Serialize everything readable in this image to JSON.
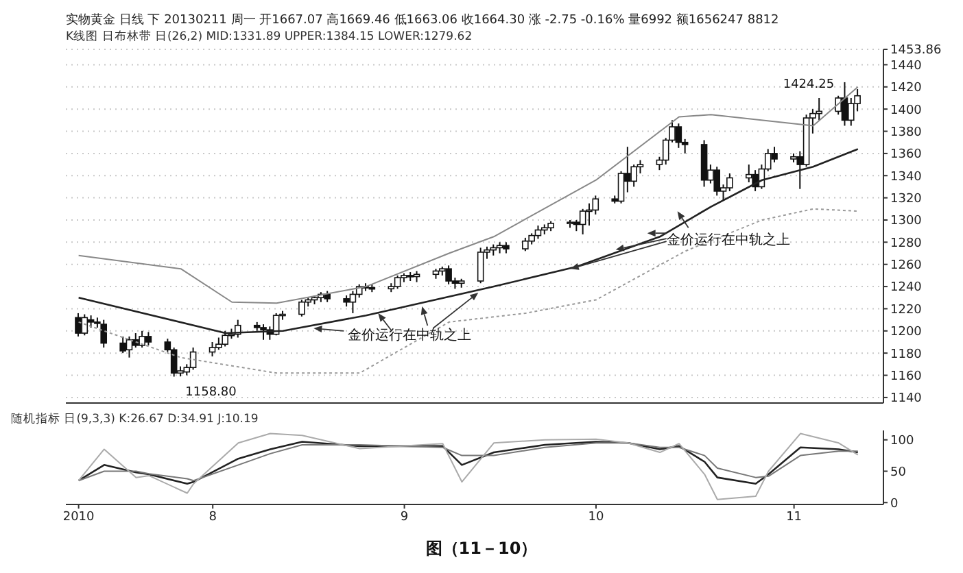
{
  "chart_data": [
    {
      "type": "candlestick",
      "title": "实物黄金 日线 下 20130211 周一 开1667.07 高1669.46 低1663.06 收1664.30 涨 -2.75 -0.16% 量6992 额1656247 8812",
      "subtitle": "K线图 日布林带 日(26,2) MID:1331.89 UPPER:1384.15 LOWER:1279.62",
      "x": [
        "2010-07-12",
        "2010-07-13",
        "2010-07-14",
        "2010-07-15",
        "2010-07-16",
        "2010-07-19",
        "2010-07-20",
        "2010-07-21",
        "2010-07-22",
        "2010-07-23",
        "2010-07-26",
        "2010-07-27",
        "2010-07-28",
        "2010-07-29",
        "2010-07-30",
        "2010-08-02",
        "2010-08-03",
        "2010-08-04",
        "2010-08-05",
        "2010-08-06",
        "2010-08-09",
        "2010-08-10",
        "2010-08-11",
        "2010-08-12",
        "2010-08-13",
        "2010-08-16",
        "2010-08-17",
        "2010-08-18",
        "2010-08-19",
        "2010-08-20",
        "2010-08-23",
        "2010-08-24",
        "2010-08-25",
        "2010-08-26",
        "2010-08-27",
        "2010-08-30",
        "2010-08-31",
        "2010-09-01",
        "2010-09-02",
        "2010-09-03",
        "2010-09-06",
        "2010-09-07",
        "2010-09-08",
        "2010-09-09",
        "2010-09-10",
        "2010-09-13",
        "2010-09-14",
        "2010-09-15",
        "2010-09-16",
        "2010-09-17",
        "2010-09-20",
        "2010-09-21",
        "2010-09-22",
        "2010-09-23",
        "2010-09-24",
        "2010-09-27",
        "2010-09-28",
        "2010-09-29",
        "2010-09-30",
        "2010-10-01",
        "2010-10-04",
        "2010-10-05",
        "2010-10-06",
        "2010-10-07",
        "2010-10-08",
        "2010-10-11",
        "2010-10-12",
        "2010-10-13",
        "2010-10-14",
        "2010-10-15",
        "2010-10-18",
        "2010-10-19",
        "2010-10-20",
        "2010-10-21",
        "2010-10-22",
        "2010-10-25",
        "2010-10-26",
        "2010-10-27",
        "2010-10-28",
        "2010-10-29",
        "2010-11-01",
        "2010-11-02",
        "2010-11-03",
        "2010-11-04",
        "2010-11-05",
        "2010-11-08",
        "2010-11-09",
        "2010-11-10",
        "2010-11-11"
      ],
      "ohlc": [
        [
          1212,
          1216,
          1195,
          1198
        ],
        [
          1198,
          1215,
          1196,
          1212
        ],
        [
          1210,
          1214,
          1203,
          1208
        ],
        [
          1208,
          1212,
          1203,
          1207
        ],
        [
          1206,
          1210,
          1185,
          1189
        ],
        [
          1189,
          1195,
          1180,
          1182
        ],
        [
          1183,
          1195,
          1176,
          1192
        ],
        [
          1192,
          1198,
          1185,
          1187
        ],
        [
          1187,
          1200,
          1185,
          1195
        ],
        [
          1195,
          1199,
          1187,
          1190
        ],
        [
          1190,
          1193,
          1181,
          1183
        ],
        [
          1183,
          1185,
          1158.8,
          1162
        ],
        [
          1162,
          1168,
          1159,
          1164
        ],
        [
          1163,
          1170,
          1160,
          1167
        ],
        [
          1167,
          1185,
          1165,
          1181
        ],
        [
          1181,
          1190,
          1177,
          1185
        ],
        [
          1185,
          1194,
          1183,
          1188
        ],
        [
          1188,
          1200,
          1186,
          1196
        ],
        [
          1196,
          1202,
          1193,
          1197
        ],
        [
          1197,
          1210,
          1194,
          1205
        ],
        [
          1205,
          1208,
          1200,
          1203
        ],
        [
          1203,
          1206,
          1192,
          1201
        ],
        [
          1201,
          1204,
          1192,
          1197
        ],
        [
          1197,
          1216,
          1196,
          1214
        ],
        [
          1214,
          1218,
          1210,
          1215
        ],
        [
          1215,
          1228,
          1213,
          1226
        ],
        [
          1226,
          1230,
          1222,
          1228
        ],
        [
          1228,
          1232,
          1224,
          1230
        ],
        [
          1230,
          1235,
          1226,
          1233
        ],
        [
          1233,
          1236,
          1226,
          1229
        ],
        [
          1229,
          1232,
          1222,
          1226
        ],
        [
          1226,
          1236,
          1216,
          1233
        ],
        [
          1233,
          1242,
          1230,
          1240
        ],
        [
          1240,
          1243,
          1236,
          1239
        ],
        [
          1239,
          1242,
          1235,
          1238
        ],
        [
          1238,
          1243,
          1235,
          1240
        ],
        [
          1240,
          1250,
          1238,
          1248
        ],
        [
          1248,
          1252,
          1244,
          1250
        ],
        [
          1250,
          1253,
          1245,
          1249
        ],
        [
          1249,
          1254,
          1244,
          1251
        ],
        [
          1251,
          1256,
          1247,
          1254
        ],
        [
          1254,
          1258,
          1250,
          1256
        ],
        [
          1256,
          1259,
          1242,
          1245
        ],
        [
          1245,
          1248,
          1238,
          1243
        ],
        [
          1243,
          1247,
          1239,
          1245
        ],
        [
          1245,
          1275,
          1243,
          1271
        ],
        [
          1271,
          1276,
          1265,
          1273
        ],
        [
          1273,
          1278,
          1268,
          1275
        ],
        [
          1275,
          1280,
          1270,
          1277
        ],
        [
          1277,
          1280,
          1270,
          1274
        ],
        [
          1274,
          1284,
          1272,
          1281
        ],
        [
          1281,
          1288,
          1278,
          1286
        ],
        [
          1286,
          1295,
          1283,
          1291
        ],
        [
          1291,
          1296,
          1287,
          1293
        ],
        [
          1293,
          1299,
          1290,
          1297
        ],
        [
          1297,
          1300,
          1293,
          1298
        ],
        [
          1298,
          1300,
          1290,
          1296
        ],
        [
          1296,
          1310,
          1287,
          1308
        ],
        [
          1308,
          1315,
          1295,
          1309
        ],
        [
          1309,
          1322,
          1305,
          1319
        ],
        [
          1319,
          1322,
          1315,
          1317
        ],
        [
          1317,
          1344,
          1315,
          1342
        ],
        [
          1342,
          1366,
          1325,
          1335
        ],
        [
          1335,
          1350,
          1330,
          1348
        ],
        [
          1348,
          1354,
          1342,
          1350
        ],
        [
          1350,
          1357,
          1345,
          1354
        ],
        [
          1354,
          1374,
          1350,
          1372
        ],
        [
          1372,
          1390,
          1370,
          1384
        ],
        [
          1384,
          1387,
          1365,
          1370
        ],
        [
          1370,
          1373,
          1360,
          1368
        ],
        [
          1368,
          1372,
          1330,
          1336
        ],
        [
          1336,
          1350,
          1333,
          1345
        ],
        [
          1345,
          1348,
          1322,
          1326
        ],
        [
          1326,
          1332,
          1318,
          1329
        ],
        [
          1329,
          1342,
          1326,
          1338
        ],
        [
          1338,
          1350,
          1334,
          1341
        ],
        [
          1341,
          1345,
          1326,
          1330
        ],
        [
          1330,
          1350,
          1328,
          1346
        ],
        [
          1346,
          1364,
          1344,
          1360
        ],
        [
          1360,
          1366,
          1352,
          1355
        ],
        [
          1355,
          1360,
          1352,
          1357
        ],
        [
          1357,
          1362,
          1328,
          1350
        ],
        [
          1350,
          1395,
          1348,
          1392
        ],
        [
          1392,
          1400,
          1378,
          1396
        ],
        [
          1396,
          1410,
          1390,
          1398
        ],
        [
          1398,
          1412,
          1395,
          1410
        ],
        [
          1410,
          1424.25,
          1385,
          1390
        ],
        [
          1390,
          1410,
          1385,
          1405
        ],
        [
          1405,
          1418,
          1398,
          1412
        ]
      ],
      "series": [
        {
          "type": "line",
          "color": "#222222",
          "line_style": "solid",
          "x": [
            "2010-07-12",
            "2010-08-04",
            "2010-08-13",
            "2010-08-26",
            "2010-09-15",
            "2010-09-28",
            "2010-10-11",
            "2010-10-19",
            "2010-10-27",
            "2010-11-04",
            "2010-11-11"
          ],
          "values": [
            1230,
            1198,
            1200,
            1214,
            1240,
            1258,
            1285,
            1312,
            1336,
            1348,
            1364
          ]
        },
        {
          "type": "line",
          "color": "#888888",
          "line_style": "solid",
          "x": [
            "2010-07-12",
            "2010-07-28",
            "2010-08-05",
            "2010-08-12",
            "2010-08-26",
            "2010-09-08",
            "2010-09-15",
            "2010-10-01",
            "2010-10-14",
            "2010-10-19",
            "2010-11-04",
            "2010-11-11"
          ],
          "values": [
            1268,
            1256,
            1226,
            1225,
            1240,
            1270,
            1285,
            1336,
            1393,
            1395,
            1385,
            1420
          ]
        },
        {
          "type": "line",
          "color": "#999999",
          "line_style": "dotted",
          "x": [
            "2010-07-12",
            "2010-07-28",
            "2010-08-12",
            "2010-08-25",
            "2010-09-08",
            "2010-09-20",
            "2010-10-01",
            "2010-10-15",
            "2010-10-27",
            "2010-11-04",
            "2010-11-11"
          ],
          "values": [
            1208,
            1176,
            1162,
            1162,
            1208,
            1216,
            1228,
            1272,
            1300,
            1310,
            1308
          ]
        }
      ],
      "xlim": [
        "2010-07-10",
        "2010-11-15"
      ],
      "ylim": [
        1135,
        1453.86
      ],
      "yticks": [
        1140,
        1160,
        1180,
        1200,
        1220,
        1240,
        1260,
        1280,
        1300,
        1320,
        1340,
        1360,
        1380,
        1400,
        1420,
        1440,
        1453.86
      ],
      "grid": "y",
      "tick_labels": "y",
      "annotations": [
        {
          "text": "1158.80",
          "x": "2010-07-27",
          "y": 1158.8
        },
        {
          "text": "1424.25",
          "x": "2010-11-09",
          "y": 1424.25
        },
        {
          "text": "金价运行在中轨之上",
          "x": "2010-09-13",
          "y": 1237
        },
        {
          "text": "金价运行在中轨之上",
          "x": "2010-09-27",
          "y": 1256
        }
      ]
    },
    {
      "type": "line",
      "title": "随机指标 日(9,3,3) K:26.67 D:34.91 J:10.19",
      "series": [
        {
          "color": "#222222",
          "x": [
            "2010-07-12",
            "2010-07-16",
            "2010-07-21",
            "2010-07-23",
            "2010-07-29",
            "2010-07-30",
            "2010-08-06",
            "2010-08-11",
            "2010-08-16",
            "2010-08-25",
            "2010-09-07",
            "2010-09-10",
            "2010-09-15",
            "2010-09-23",
            "2010-10-01",
            "2010-10-06",
            "2010-10-11",
            "2010-10-14",
            "2010-10-18",
            "2010-10-20",
            "2010-10-26",
            "2010-10-28",
            "2010-11-02",
            "2010-11-08",
            "2010-11-11"
          ],
          "values": [
            35,
            60,
            48,
            45,
            30,
            33,
            70,
            85,
            97,
            90,
            90,
            60,
            80,
            92,
            97,
            95,
            85,
            90,
            65,
            40,
            30,
            45,
            88,
            85,
            80
          ]
        },
        {
          "color": "#777777",
          "x": [
            "2010-07-12",
            "2010-07-16",
            "2010-07-21",
            "2010-07-23",
            "2010-07-29",
            "2010-07-30",
            "2010-08-06",
            "2010-08-11",
            "2010-08-16",
            "2010-08-25",
            "2010-09-07",
            "2010-09-10",
            "2010-09-15",
            "2010-09-23",
            "2010-10-01",
            "2010-10-06",
            "2010-10-11",
            "2010-10-14",
            "2010-10-18",
            "2010-10-20",
            "2010-10-26",
            "2010-10-28",
            "2010-11-02",
            "2010-11-08",
            "2010-11-11"
          ],
          "values": [
            35,
            50,
            50,
            46,
            38,
            35,
            60,
            78,
            92,
            92,
            88,
            75,
            75,
            88,
            95,
            95,
            88,
            88,
            75,
            55,
            40,
            42,
            75,
            82,
            82
          ]
        },
        {
          "color": "#aaaaaa",
          "x": [
            "2010-07-12",
            "2010-07-16",
            "2010-07-21",
            "2010-07-23",
            "2010-07-29",
            "2010-07-30",
            "2010-08-06",
            "2010-08-11",
            "2010-08-16",
            "2010-08-25",
            "2010-09-07",
            "2010-09-10",
            "2010-09-15",
            "2010-09-23",
            "2010-10-01",
            "2010-10-06",
            "2010-10-11",
            "2010-10-14",
            "2010-10-18",
            "2010-10-20",
            "2010-10-26",
            "2010-10-28",
            "2010-11-02",
            "2010-11-08",
            "2010-11-11"
          ],
          "values": [
            35,
            85,
            40,
            43,
            15,
            30,
            95,
            110,
            107,
            86,
            94,
            33,
            95,
            100,
            101,
            95,
            80,
            94,
            45,
            5,
            10,
            50,
            110,
            95,
            76
          ]
        }
      ],
      "xticks": [
        {
          "value": "2010-07-12",
          "label": "2010"
        },
        {
          "value": "2010-08-02",
          "label": "8"
        },
        {
          "value": "2010-09-01",
          "label": "9"
        },
        {
          "value": "2010-10-01",
          "label": "10"
        },
        {
          "value": "2010-11-01",
          "label": "11"
        }
      ],
      "xlim": [
        "2010-07-10",
        "2010-11-15"
      ],
      "ylim": [
        -3,
        115
      ],
      "yticks": [
        0,
        50,
        100
      ],
      "tick_labels": true,
      "annotations": [
        "图（11－10）"
      ]
    }
  ]
}
